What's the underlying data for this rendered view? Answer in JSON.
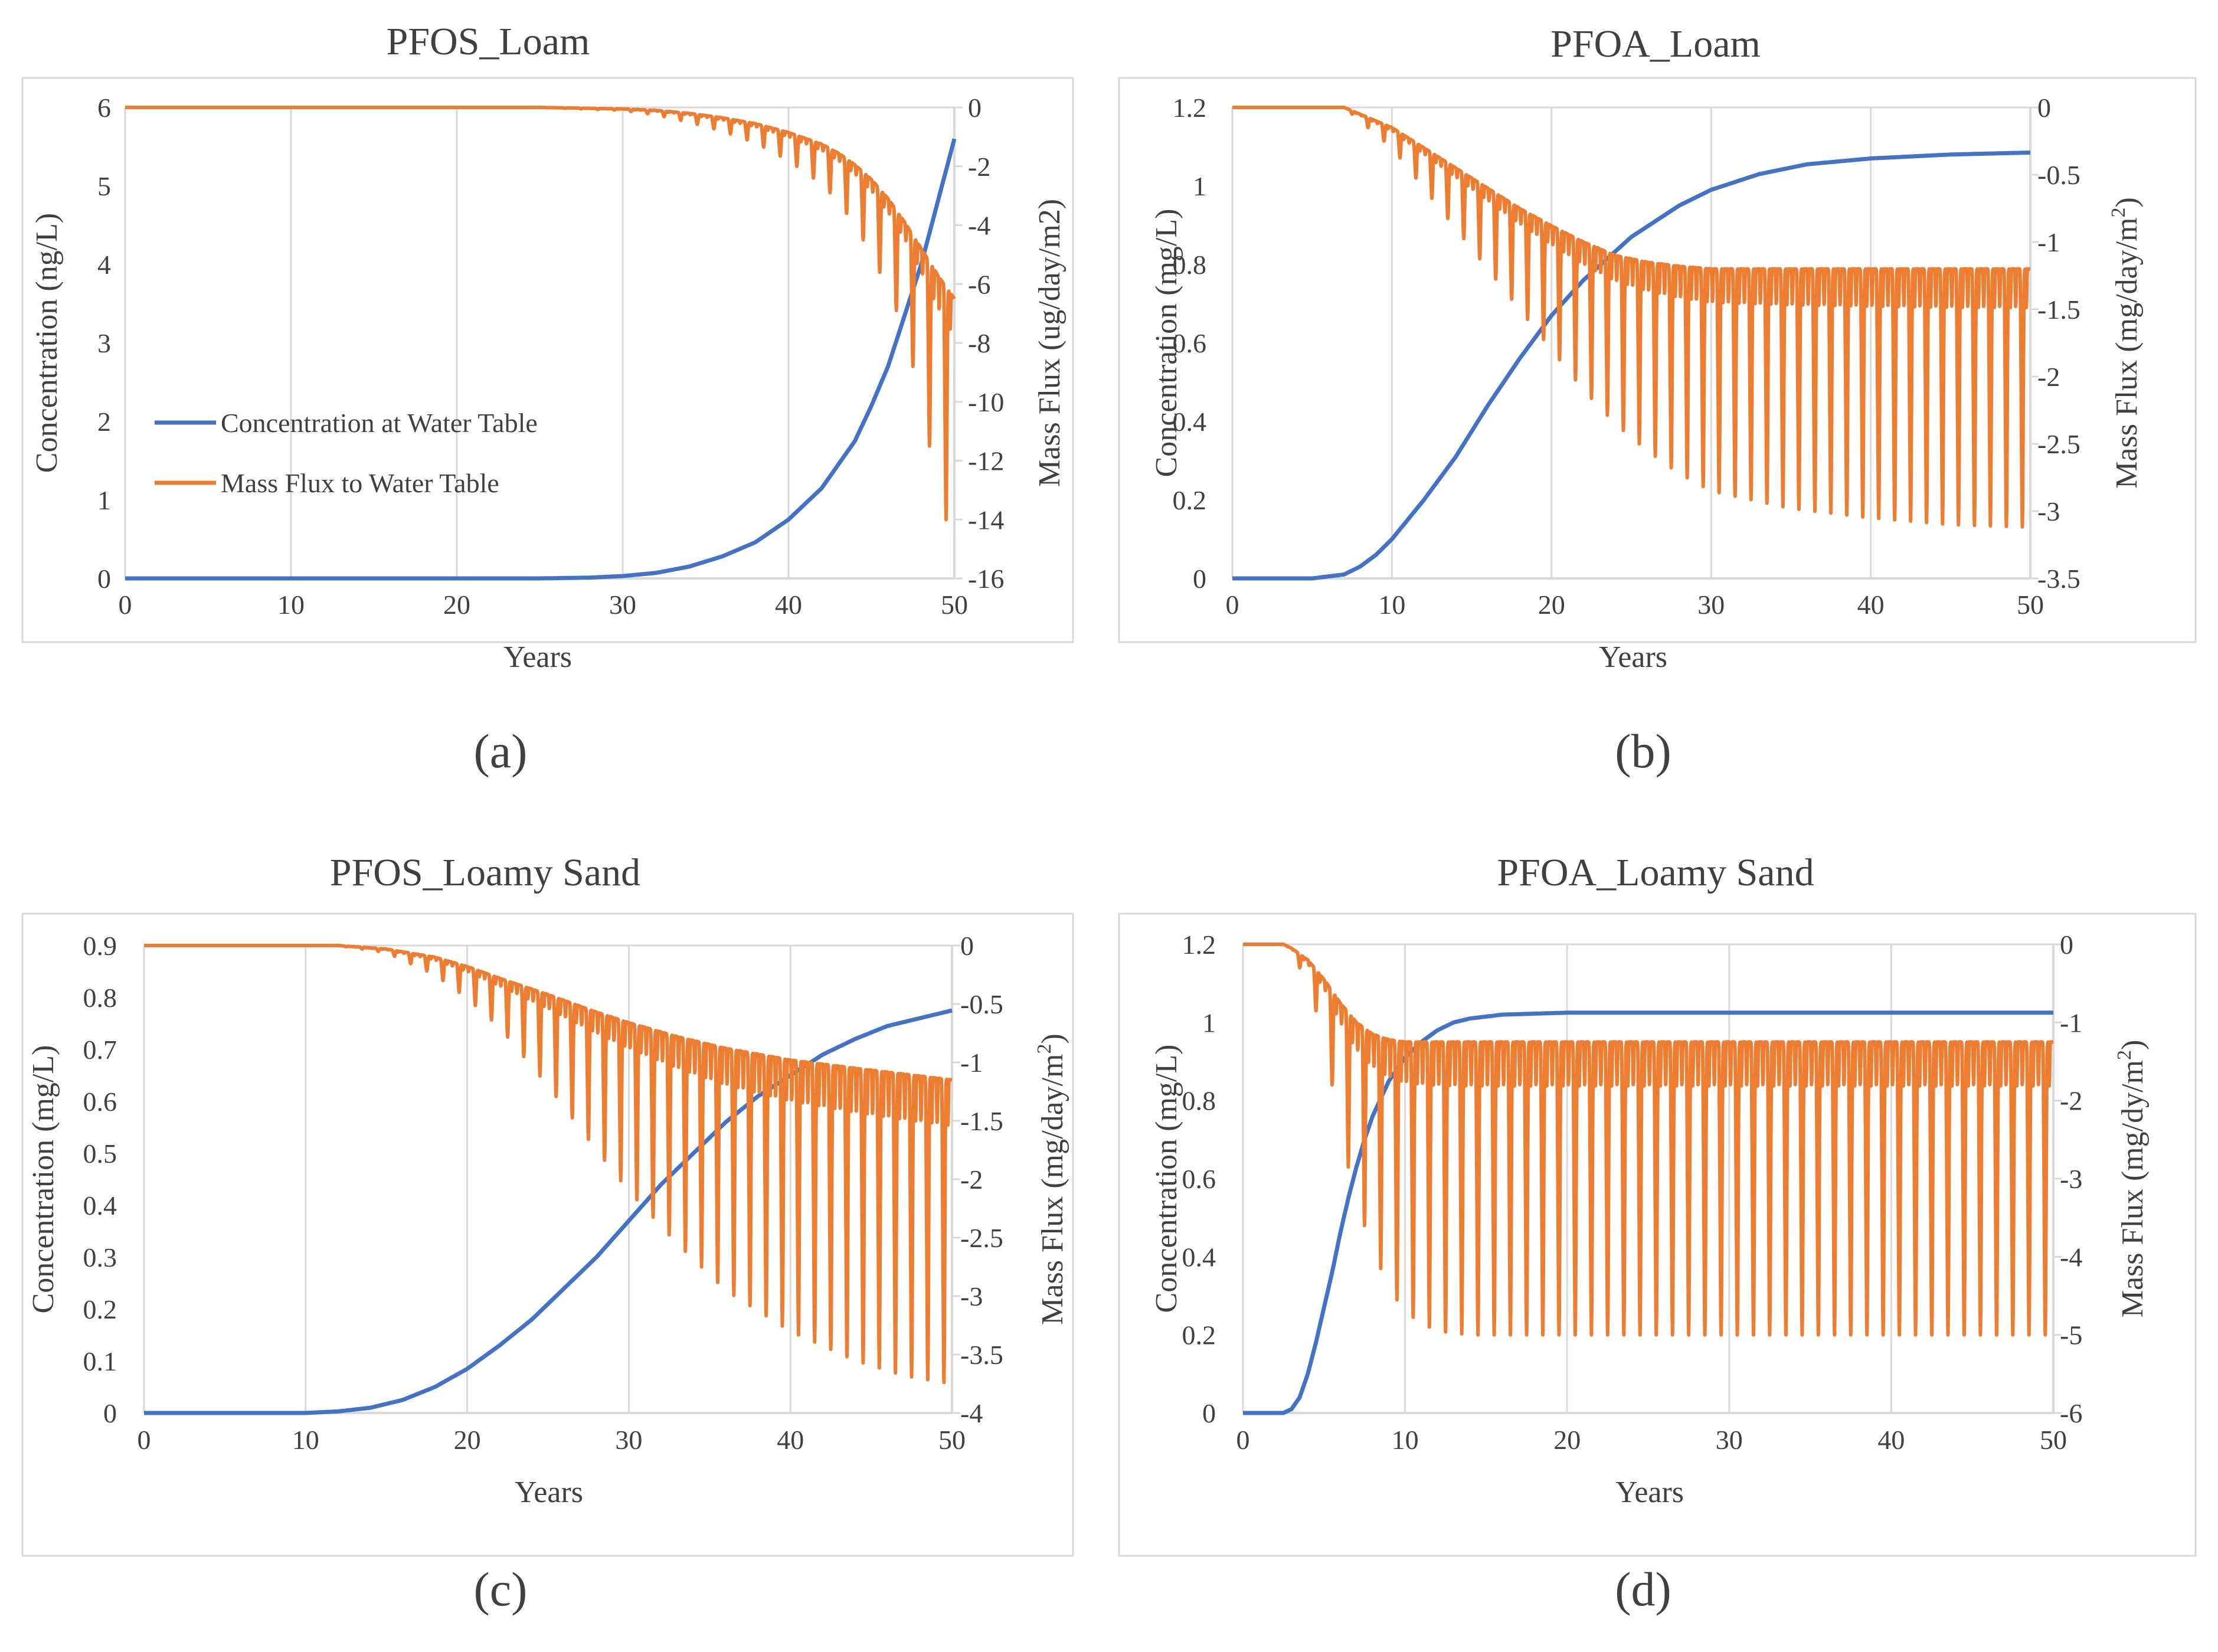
{
  "colors": {
    "concentration": "#4472C4",
    "mass_flux": "#ED7D31",
    "grid": "#D9D9D9",
    "border": "#D9D9D9",
    "text": "#404040"
  },
  "legend": {
    "concentration_label": "Concentration at Water Table",
    "mass_flux_label": "Mass Flux to Water Table"
  },
  "chart_data": [
    {
      "panel": "a",
      "caption": "(a)",
      "type": "line",
      "title": "PFOS_Loam",
      "xlabel": "Years",
      "ylabel": "Concentration (ng/L)",
      "y2label": "Mass Flux (ug/day/m2)",
      "xlim": [
        0,
        50
      ],
      "ylim": [
        0,
        6
      ],
      "y2lim": [
        -16,
        0
      ],
      "xticks": [
        0,
        10,
        20,
        30,
        40,
        50
      ],
      "yticks": [
        0,
        1,
        2,
        3,
        4,
        5,
        6
      ],
      "y2ticks": [
        0,
        -2,
        -4,
        -6,
        -8,
        -10,
        -12,
        -14,
        -16
      ],
      "grid": true,
      "legend": "inside-left",
      "series": [
        {
          "name": "Concentration at Water Table",
          "axis": "left",
          "x": [
            0,
            10,
            20,
            25,
            28,
            30,
            32,
            34,
            36,
            38,
            40,
            42,
            44,
            45,
            46,
            47,
            48,
            49,
            50
          ],
          "values": [
            0,
            0,
            0,
            0,
            0.01,
            0.03,
            0.07,
            0.15,
            0.28,
            0.46,
            0.75,
            1.15,
            1.75,
            2.2,
            2.7,
            3.35,
            4.0,
            4.8,
            5.6
          ]
        },
        {
          "name": "Mass Flux to Water Table",
          "axis": "right",
          "x": [
            0,
            25,
            30,
            32,
            34,
            36,
            38,
            40,
            42,
            43,
            44,
            45,
            46,
            47,
            48,
            49,
            50
          ],
          "base": [
            0,
            0,
            -0.05,
            -0.1,
            -0.2,
            -0.35,
            -0.55,
            -0.85,
            -1.25,
            -1.55,
            -1.95,
            -2.45,
            -3.1,
            -3.9,
            -4.8,
            -5.7,
            -6.5
          ],
          "troughs": [
            0,
            0,
            -0.1,
            -0.25,
            -0.5,
            -0.8,
            -1.2,
            -1.8,
            -2.6,
            -3.2,
            -4.0,
            -5.0,
            -6.2,
            -7.6,
            -10.0,
            -13.0,
            -15.0
          ],
          "period": 1
        }
      ]
    },
    {
      "panel": "b",
      "caption": "(b)",
      "type": "line",
      "title": "PFOA_Loam",
      "xlabel": "Years",
      "ylabel": "Concentration (mg/L)",
      "y2label": "Mass Flux (mg/day/m",
      "y2label_sup": "2",
      "xlim": [
        0,
        50
      ],
      "ylim": [
        0,
        1.2
      ],
      "y2lim": [
        -3.5,
        0
      ],
      "xticks": [
        0,
        10,
        20,
        30,
        40,
        50
      ],
      "yticks": [
        0,
        0.2,
        0.4,
        0.6,
        0.8,
        1,
        1.2
      ],
      "y2ticks": [
        0,
        -0.5,
        -1,
        -1.5,
        -2,
        -2.5,
        -3,
        -3.5
      ],
      "grid": true,
      "legend": "none",
      "series": [
        {
          "name": "Concentration at Water Table",
          "axis": "left",
          "x": [
            0,
            5,
            7,
            8,
            9,
            10,
            12,
            14,
            16,
            18,
            20,
            22,
            25,
            28,
            30,
            33,
            36,
            40,
            45,
            50
          ],
          "values": [
            0,
            0,
            0.01,
            0.03,
            0.06,
            0.1,
            0.2,
            0.31,
            0.44,
            0.56,
            0.67,
            0.76,
            0.87,
            0.95,
            0.99,
            1.03,
            1.055,
            1.07,
            1.08,
            1.085
          ]
        },
        {
          "name": "Mass Flux to Water Table",
          "axis": "right",
          "x": [
            0,
            7,
            8,
            10,
            12,
            14,
            16,
            18,
            20,
            22,
            24,
            26,
            28,
            30,
            35,
            40,
            45,
            50
          ],
          "base": [
            0,
            0,
            -0.05,
            -0.15,
            -0.3,
            -0.45,
            -0.6,
            -0.75,
            -0.88,
            -1.0,
            -1.1,
            -1.15,
            -1.18,
            -1.2,
            -1.2,
            -1.2,
            -1.2,
            -1.2
          ],
          "troughs": [
            0,
            0,
            -0.1,
            -0.3,
            -0.6,
            -0.9,
            -1.2,
            -1.5,
            -1.8,
            -2.1,
            -2.35,
            -2.55,
            -2.72,
            -2.85,
            -2.98,
            -3.05,
            -3.1,
            -3.12
          ],
          "period": 1
        }
      ]
    },
    {
      "panel": "c",
      "caption": "(c)",
      "type": "line",
      "title": "PFOS_Loamy Sand",
      "xlabel": "Years",
      "ylabel": "Concentration (mg/L)",
      "y2label": "Mass Flux (mg/day/m",
      "y2label_sup": "2",
      "xlim": [
        0,
        50
      ],
      "ylim": [
        0,
        0.9
      ],
      "y2lim": [
        -4,
        0
      ],
      "xticks": [
        0,
        10,
        20,
        30,
        40,
        50
      ],
      "yticks": [
        0,
        0.1,
        0.2,
        0.3,
        0.4,
        0.5,
        0.6,
        0.7,
        0.8,
        0.9
      ],
      "y2ticks": [
        0,
        -0.5,
        -1,
        -1.5,
        -2,
        -2.5,
        -3,
        -3.5,
        -4
      ],
      "grid": true,
      "legend": "none",
      "series": [
        {
          "name": "Concentration at Water Table",
          "axis": "left",
          "x": [
            0,
            10,
            12,
            14,
            16,
            18,
            20,
            22,
            24,
            26,
            28,
            30,
            32,
            34,
            36,
            38,
            40,
            42,
            44,
            46,
            48,
            50
          ],
          "values": [
            0,
            0,
            0.003,
            0.01,
            0.025,
            0.05,
            0.085,
            0.13,
            0.18,
            0.24,
            0.3,
            0.37,
            0.44,
            0.5,
            0.56,
            0.61,
            0.65,
            0.69,
            0.72,
            0.745,
            0.76,
            0.775
          ]
        },
        {
          "name": "Mass Flux to Water Table",
          "axis": "right",
          "x": [
            0,
            12,
            15,
            18,
            20,
            22,
            25,
            28,
            30,
            33,
            36,
            40,
            44,
            47,
            50
          ],
          "base": [
            0,
            0,
            -0.03,
            -0.1,
            -0.18,
            -0.28,
            -0.42,
            -0.57,
            -0.66,
            -0.78,
            -0.88,
            -0.98,
            -1.05,
            -1.1,
            -1.15
          ],
          "troughs": [
            0,
            0,
            -0.06,
            -0.25,
            -0.45,
            -0.7,
            -1.2,
            -1.75,
            -2.1,
            -2.55,
            -2.95,
            -3.3,
            -3.55,
            -3.68,
            -3.75
          ],
          "period": 1
        }
      ]
    },
    {
      "panel": "d",
      "caption": "(d)",
      "type": "line",
      "title": "PFOA_Loamy Sand",
      "xlabel": "Years",
      "ylabel": "Concentration (mg/L)",
      "y2label": "Mass Flux (mg/dy/m",
      "y2label_sup": "2",
      "xlim": [
        0,
        50
      ],
      "ylim": [
        0,
        1.2
      ],
      "y2lim": [
        -6,
        0
      ],
      "xticks": [
        0,
        10,
        20,
        30,
        40,
        50
      ],
      "yticks": [
        0,
        0.2,
        0.4,
        0.6,
        0.8,
        1,
        1.2
      ],
      "y2ticks": [
        0,
        -1,
        -2,
        -3,
        -4,
        -5,
        -6
      ],
      "grid": true,
      "legend": "none",
      "series": [
        {
          "name": "Concentration at Water Table",
          "axis": "left",
          "x": [
            0,
            2.5,
            3,
            3.5,
            4,
            4.5,
            5,
            5.5,
            6,
            6.5,
            7,
            7.5,
            8,
            9,
            10,
            11,
            12,
            13,
            14,
            16,
            20,
            30,
            40,
            50
          ],
          "values": [
            0,
            0,
            0.01,
            0.04,
            0.1,
            0.18,
            0.27,
            0.36,
            0.46,
            0.55,
            0.63,
            0.7,
            0.76,
            0.85,
            0.91,
            0.95,
            0.98,
            1.0,
            1.01,
            1.02,
            1.025,
            1.025,
            1.025,
            1.025
          ]
        },
        {
          "name": "Mass Flux to Water Table",
          "axis": "right",
          "x": [
            0,
            2.5,
            3,
            4,
            5,
            6,
            7,
            8,
            9,
            10,
            11,
            12,
            14,
            16,
            20,
            30,
            40,
            50
          ],
          "base": [
            0,
            0,
            -0.05,
            -0.2,
            -0.45,
            -0.75,
            -1.0,
            -1.15,
            -1.22,
            -1.25,
            -1.25,
            -1.25,
            -1.25,
            -1.25,
            -1.25,
            -1.25,
            -1.25,
            -1.25
          ],
          "troughs": [
            0,
            0,
            -0.1,
            -0.5,
            -1.2,
            -2.4,
            -3.3,
            -3.9,
            -4.4,
            -4.7,
            -4.85,
            -4.95,
            -5.0,
            -5.0,
            -5.0,
            -5.0,
            -5.0,
            -5.0
          ],
          "period": 1
        }
      ]
    }
  ]
}
